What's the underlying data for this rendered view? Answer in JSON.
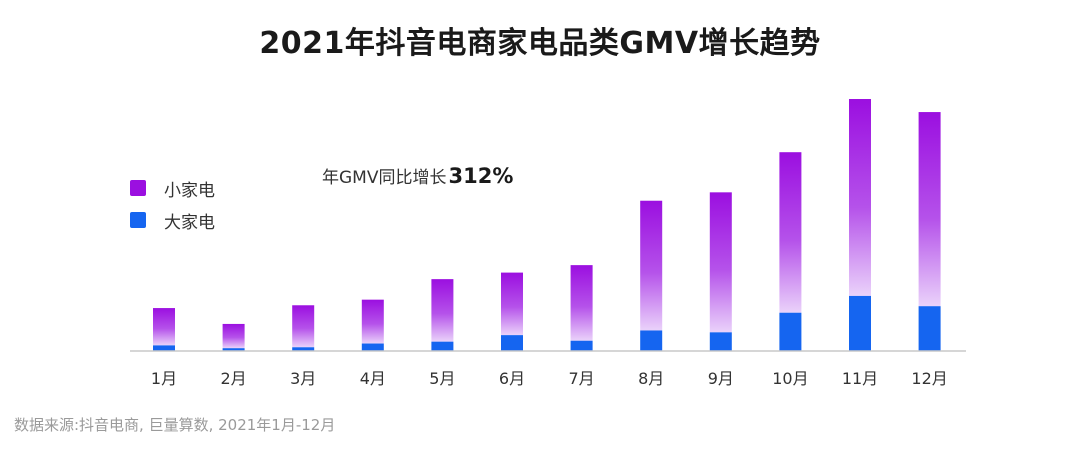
{
  "chart_data": {
    "type": "bar",
    "stacked": true,
    "title": "2021年抖音电商家电品类GMV增长趋势",
    "categories": [
      "1月",
      "2月",
      "3月",
      "4月",
      "5月",
      "6月",
      "7月",
      "8月",
      "9月",
      "10月",
      "11月",
      "12月"
    ],
    "series": [
      {
        "name": "大家电",
        "color": "#1565f0",
        "values": [
          6,
          3,
          4,
          8,
          10,
          17,
          11,
          22,
          20,
          41,
          59,
          48
        ]
      },
      {
        "name": "小家电",
        "color": "#9b0fe0",
        "values": [
          40,
          26,
          45,
          47,
          67,
          67,
          81,
          139,
          150,
          172,
          211,
          208
        ]
      }
    ],
    "ylim": [
      0,
      285
    ],
    "grid": false,
    "legend": "left",
    "annotation": {
      "text": "年GMV同比增长",
      "value": "312%"
    }
  },
  "source": "数据来源:抖音电商, 巨量算数, 2021年1月-12月"
}
